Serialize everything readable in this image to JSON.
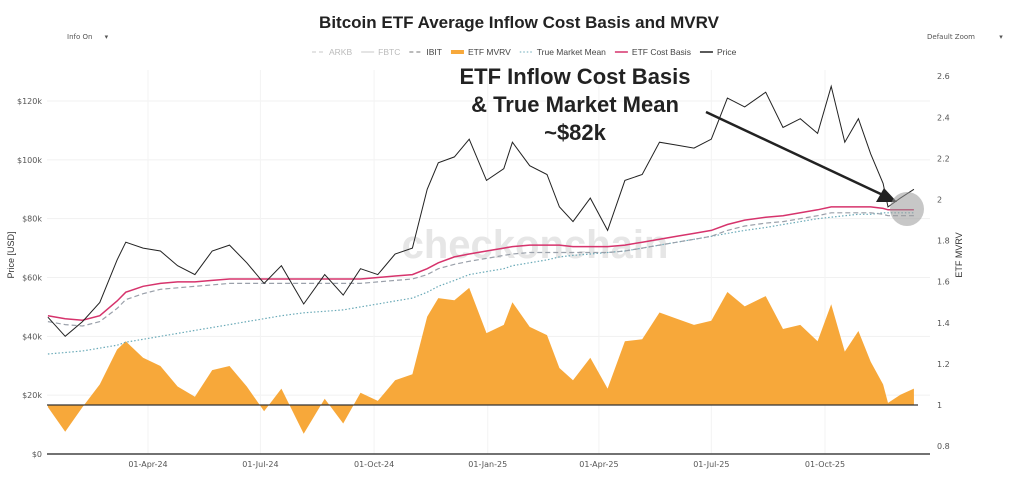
{
  "controls": {
    "info": "Info On",
    "zoom": "Default Zoom",
    "caret": "▾"
  },
  "annotation": {
    "line1": "ETF Inflow Cost Basis",
    "line2": "& True Market Mean",
    "line3": "~$82k"
  },
  "watermark": "checkonchain",
  "colors": {
    "price": "#222222",
    "cost_basis": "#d6336c",
    "true_market_mean": "#6aaab8",
    "mvrv": "#f7a83a",
    "ibit": "#9aa0aa",
    "hidden": "#c8c8c8"
  },
  "chart_data": {
    "type": "line",
    "title": "Bitcoin ETF Average Inflow Cost Basis and MVRV",
    "ylabel": "Price [USD]",
    "y2label": "ETF MVRV",
    "ylim": [
      0,
      120000
    ],
    "y2lim": [
      0.8,
      2.6
    ],
    "xlim": [
      "2024-01-11",
      "2025-12-31"
    ],
    "y_ticks": [
      "$0",
      "$20k",
      "$40k",
      "$60k",
      "$80k",
      "$100k",
      "$120k"
    ],
    "y2_ticks": [
      "0.8",
      "1",
      "1.2",
      "1.4",
      "1.6",
      "1.8",
      "2",
      "2.2",
      "2.4",
      "2.6"
    ],
    "x_ticks": [
      "01-Apr-24",
      "01-Jul-24",
      "01-Oct-24",
      "01-Jan-25",
      "01-Apr-25",
      "01-Jul-25",
      "01-Oct-25"
    ],
    "legend_position": "top-center",
    "legend": [
      {
        "name": "ARKB",
        "style": "dashed",
        "visible": false
      },
      {
        "name": "FBTC",
        "style": "solid",
        "visible": false
      },
      {
        "name": "IBIT",
        "style": "dashed",
        "visible": true
      },
      {
        "name": "ETF MVRV",
        "style": "area",
        "visible": true
      },
      {
        "name": "True Market Mean",
        "style": "dotted",
        "visible": true
      },
      {
        "name": "ETF Cost Basis",
        "style": "solid",
        "visible": true
      },
      {
        "name": "Price",
        "style": "solid",
        "visible": true
      }
    ],
    "x": [
      "2024-01-11",
      "2024-01-25",
      "2024-02-08",
      "2024-02-22",
      "2024-03-07",
      "2024-03-14",
      "2024-03-28",
      "2024-04-11",
      "2024-04-25",
      "2024-05-09",
      "2024-05-23",
      "2024-06-06",
      "2024-06-20",
      "2024-07-04",
      "2024-07-18",
      "2024-08-05",
      "2024-08-22",
      "2024-09-06",
      "2024-09-20",
      "2024-10-04",
      "2024-10-18",
      "2024-11-01",
      "2024-11-13",
      "2024-11-22",
      "2024-12-05",
      "2024-12-17",
      "2024-12-31",
      "2025-01-14",
      "2025-01-21",
      "2025-02-04",
      "2025-02-18",
      "2025-02-28",
      "2025-03-11",
      "2025-03-25",
      "2025-04-08",
      "2025-04-22",
      "2025-05-06",
      "2025-05-20",
      "2025-06-03",
      "2025-06-17",
      "2025-07-01",
      "2025-07-14",
      "2025-07-28",
      "2025-08-14",
      "2025-08-28",
      "2025-09-11",
      "2025-09-25",
      "2025-10-06",
      "2025-10-17",
      "2025-10-28",
      "2025-11-07",
      "2025-11-17",
      "2025-11-21",
      "2025-12-01",
      "2025-12-12"
    ],
    "series": [
      {
        "name": "Price",
        "axis": "left",
        "values": [
          46500,
          40000,
          45000,
          51500,
          66000,
          72000,
          70000,
          69000,
          64000,
          61000,
          69000,
          71000,
          65000,
          58000,
          64000,
          51000,
          61000,
          54000,
          63000,
          61000,
          68000,
          70000,
          90000,
          99000,
          101000,
          107000,
          93000,
          97000,
          106000,
          98000,
          95000,
          84000,
          79000,
          87000,
          76000,
          93000,
          95000,
          106000,
          105000,
          104000,
          107000,
          121000,
          118000,
          123000,
          111000,
          114000,
          109000,
          125000,
          106000,
          114000,
          102000,
          92000,
          84000,
          87000,
          90000
        ]
      },
      {
        "name": "ETF Cost Basis",
        "axis": "left",
        "values": [
          47000,
          46000,
          45500,
          47000,
          52000,
          55000,
          57000,
          58000,
          58500,
          58500,
          59000,
          59500,
          59500,
          59500,
          59500,
          59500,
          59500,
          59500,
          59500,
          60000,
          60500,
          61000,
          63000,
          65000,
          67000,
          68000,
          69000,
          70000,
          70500,
          71000,
          71000,
          71000,
          70500,
          70500,
          70500,
          71000,
          72000,
          73000,
          74000,
          75000,
          76000,
          78000,
          79500,
          80500,
          81000,
          82000,
          83000,
          84000,
          84000,
          84000,
          84000,
          83500,
          83000,
          83000,
          83000
        ]
      },
      {
        "name": "IBIT",
        "axis": "left",
        "values": [
          45000,
          44000,
          43500,
          45000,
          49500,
          52500,
          54500,
          56000,
          56500,
          57000,
          57500,
          58000,
          58000,
          58000,
          58000,
          58000,
          58000,
          58000,
          58000,
          58500,
          59000,
          59500,
          61000,
          63000,
          64500,
          65500,
          66500,
          67500,
          68000,
          68500,
          68500,
          68500,
          68500,
          68500,
          68500,
          69000,
          70000,
          71000,
          72000,
          73000,
          74000,
          76000,
          77500,
          78500,
          79000,
          80000,
          81000,
          82000,
          82000,
          82000,
          82000,
          81500,
          81000,
          81000,
          81000
        ]
      },
      {
        "name": "True Market Mean",
        "axis": "left",
        "values": [
          34000,
          34500,
          35000,
          36000,
          37000,
          38000,
          39000,
          40000,
          41000,
          42000,
          43000,
          44000,
          45000,
          46000,
          47000,
          48000,
          48500,
          49000,
          50000,
          51000,
          52000,
          53000,
          55000,
          57000,
          59000,
          61000,
          62000,
          63000,
          64000,
          65000,
          66000,
          67000,
          67500,
          68000,
          68500,
          69000,
          70000,
          71000,
          72000,
          73000,
          74000,
          75000,
          76000,
          77000,
          78000,
          79000,
          80000,
          80500,
          81000,
          81500,
          81500,
          82000,
          82000,
          82000,
          82000
        ]
      },
      {
        "name": "ETF MVRV",
        "axis": "right",
        "values": [
          0.99,
          0.87,
          0.99,
          1.1,
          1.27,
          1.31,
          1.23,
          1.19,
          1.09,
          1.04,
          1.17,
          1.19,
          1.09,
          0.97,
          1.08,
          0.86,
          1.03,
          0.91,
          1.06,
          1.02,
          1.12,
          1.15,
          1.43,
          1.52,
          1.51,
          1.57,
          1.35,
          1.39,
          1.5,
          1.38,
          1.34,
          1.18,
          1.12,
          1.23,
          1.08,
          1.31,
          1.32,
          1.45,
          1.42,
          1.39,
          1.41,
          1.55,
          1.48,
          1.53,
          1.37,
          1.39,
          1.31,
          1.49,
          1.26,
          1.36,
          1.21,
          1.1,
          1.01,
          1.05,
          1.08
        ]
      }
    ]
  }
}
